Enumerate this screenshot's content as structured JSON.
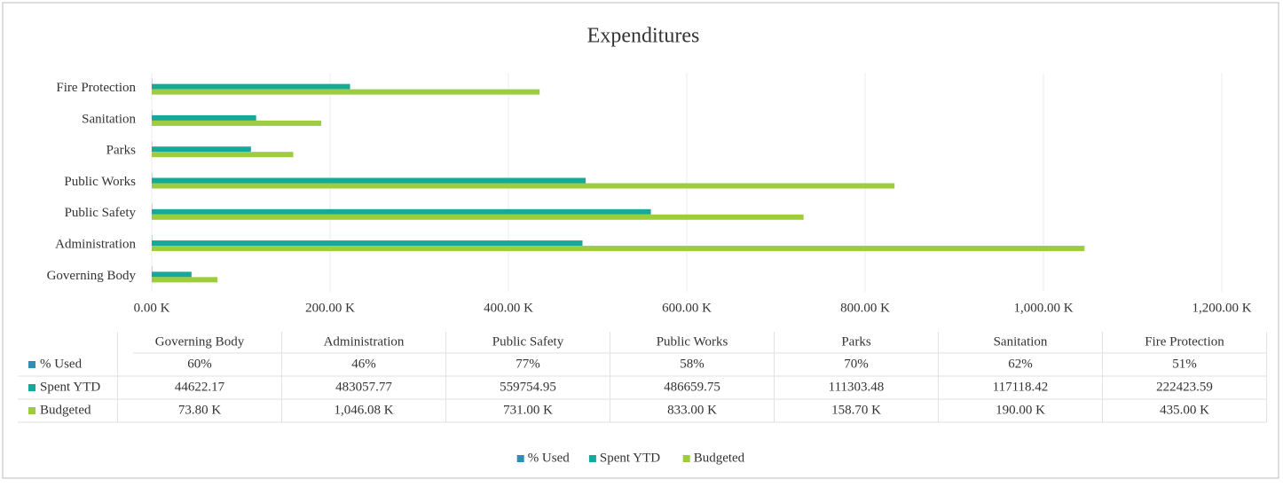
{
  "chart_data": {
    "type": "hbar",
    "title": "Expenditures",
    "categories": [
      "Governing Body",
      "Administration",
      "Public Safety",
      "Public Works",
      "Parks",
      "Sanitation",
      "Fire Protection"
    ],
    "series": [
      {
        "name": "% Used",
        "color": "#2f8fb3",
        "values": [
          60,
          46,
          77,
          58,
          70,
          62,
          51
        ],
        "value_labels": [
          "60%",
          "46%",
          "77%",
          "58%",
          "70%",
          "62%",
          "51%"
        ]
      },
      {
        "name": "Spent YTD",
        "color": "#17a89a",
        "values": [
          44622.17,
          483057.77,
          559754.95,
          486659.75,
          111303.48,
          117118.42,
          222423.59
        ]
      },
      {
        "name": "Budgeted",
        "color": "#9dcd3e",
        "values": [
          73800,
          1046080,
          731000,
          833000,
          158700,
          190000,
          435000
        ],
        "value_labels": [
          "73.80 K",
          "1,046.08 K",
          "731.00 K",
          "833.00 K",
          "158.70 K",
          "190.00 K",
          "435.00 K"
        ]
      }
    ],
    "xlim": [
      0,
      1200000
    ],
    "xticks": [
      {
        "value": 0,
        "label": "0.00 K"
      },
      {
        "value": 200000,
        "label": "200.00 K"
      },
      {
        "value": 400000,
        "label": "400.00 K"
      },
      {
        "value": 600000,
        "label": "600.00 K"
      },
      {
        "value": 800000,
        "label": "800.00 K"
      },
      {
        "value": 1000000,
        "label": "1,000.00 K"
      },
      {
        "value": 1200000,
        "label": "1,200.00 K"
      }
    ],
    "grid": true,
    "legend": "bottom",
    "data_table": true
  }
}
